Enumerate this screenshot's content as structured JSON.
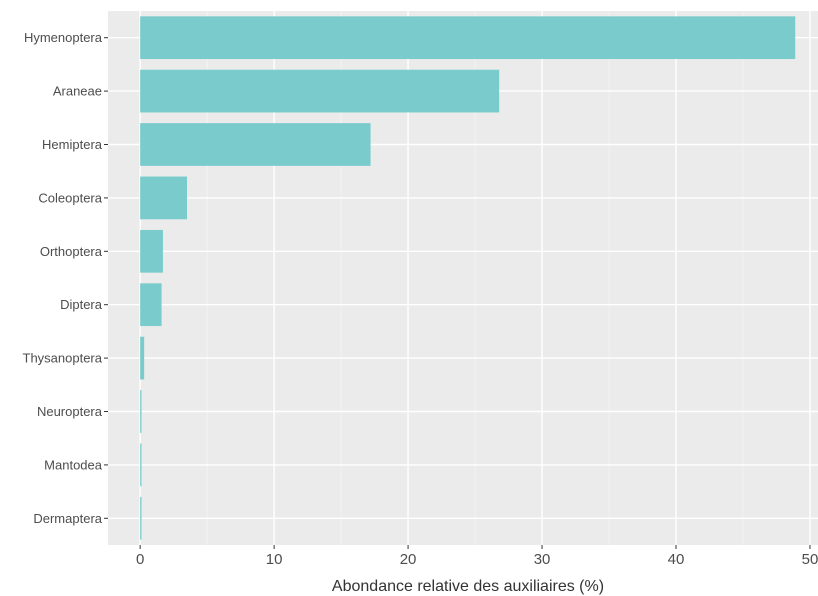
{
  "chart_data": {
    "type": "bar",
    "orientation": "horizontal",
    "categories": [
      "Hymenoptera",
      "Araneae",
      "Hemiptera",
      "Coleoptera",
      "Orthoptera",
      "Diptera",
      "Thysanoptera",
      "Neuroptera",
      "Mantodea",
      "Dermaptera"
    ],
    "values": [
      48.9,
      26.8,
      17.2,
      3.5,
      1.7,
      1.6,
      0.3,
      0.1,
      0.1,
      0.1
    ],
    "title": "",
    "xlabel": "Abondance relative des auxiliaires (%)",
    "ylabel": "",
    "xlim": [
      -2.4,
      50.6
    ],
    "x_ticks": [
      0,
      10,
      20,
      30,
      40,
      50
    ],
    "x_tick_labels": [
      "0",
      "10",
      "20",
      "30",
      "40",
      "50"
    ],
    "grid": true,
    "legend": "none",
    "colors": {
      "bar": "#7ACCCC",
      "panel_background": "#EBEBEB",
      "grid_major": "#FFFFFF",
      "grid_minor": "#F5F5F5",
      "tick": "#333333",
      "text": "#4D4D4D"
    }
  }
}
